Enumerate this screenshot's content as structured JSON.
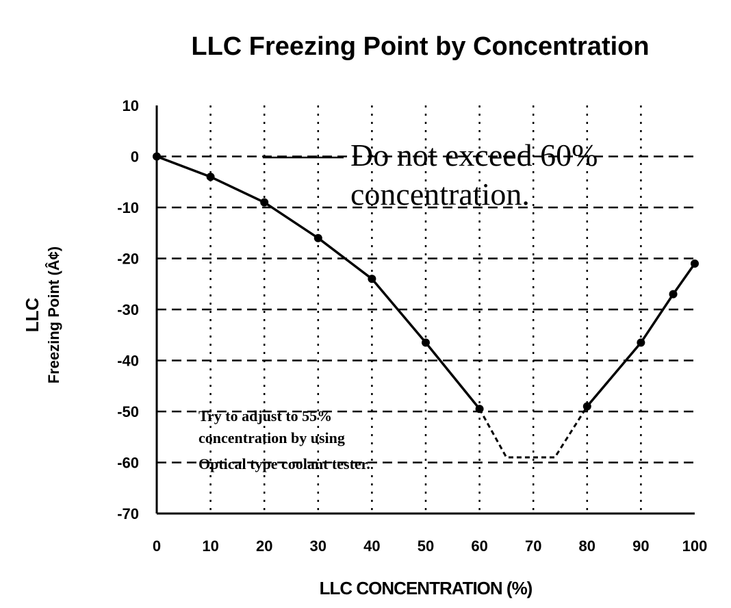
{
  "chart_data": {
    "type": "line",
    "title": "LLC Freezing Point by Concentration",
    "ylabel_line1": "LLC",
    "ylabel_line2": "Freezing  Point (Â¢)",
    "xlabel": "LLC CONCENTRATION (%)",
    "xlim": [
      0,
      100
    ],
    "ylim": [
      -70,
      10
    ],
    "xticks": [
      0,
      10,
      20,
      30,
      40,
      50,
      60,
      70,
      80,
      90,
      100
    ],
    "yticks": [
      10,
      0,
      -10,
      -20,
      -30,
      -40,
      -50,
      -60,
      -70
    ],
    "grid": true,
    "series": [
      {
        "x": [
          0,
          10,
          20,
          30,
          40,
          50,
          60,
          80,
          90,
          96,
          100
        ],
        "y": [
          0,
          -4,
          -9,
          -16,
          -24,
          -36.5,
          -49.5,
          -49,
          -36.5,
          -27,
          -21
        ]
      }
    ],
    "eutectic_dashed": {
      "x": [
        60,
        65,
        74,
        80
      ],
      "y": [
        -49.5,
        -59,
        -59,
        -49
      ]
    },
    "annotations": {
      "main_line1": "Do not exceed 60%",
      "main_line2": "concentration.",
      "note_line1": "Try to adjust to 55%",
      "note_line2": "concentration by using",
      "note_line3": "Optical type coolant tester."
    }
  }
}
